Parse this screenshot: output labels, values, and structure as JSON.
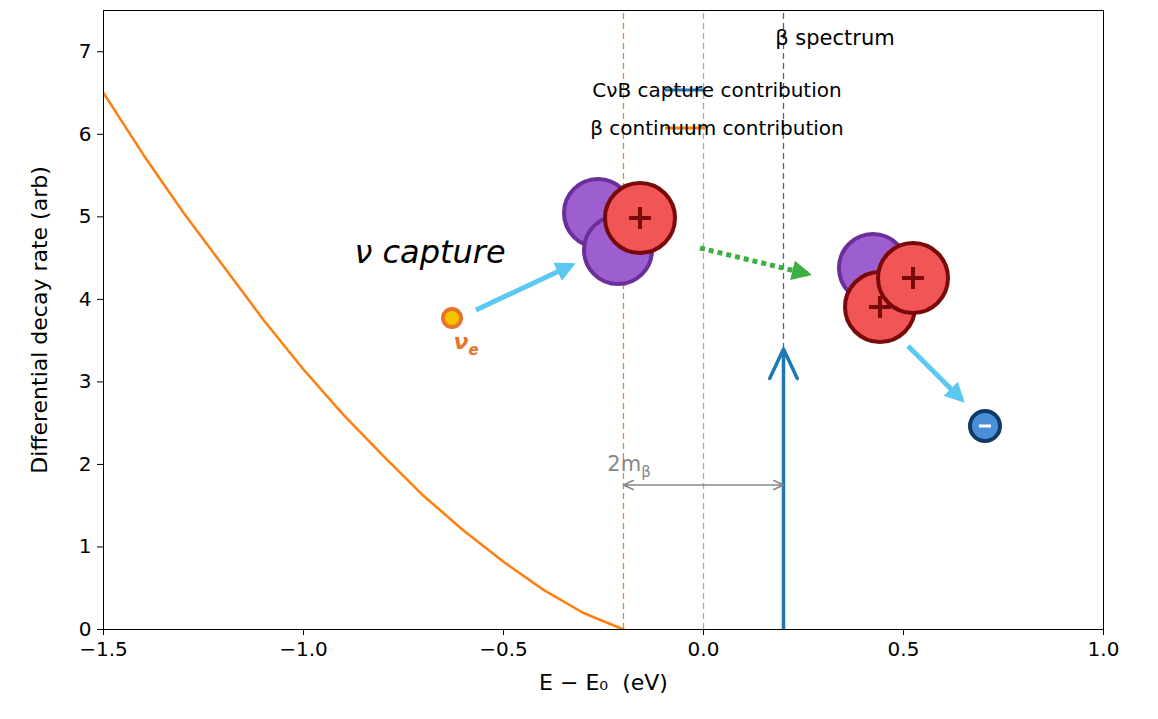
{
  "chart_data": {
    "type": "line",
    "xlabel": "E − E₀  (eV)",
    "ylabel": "Differential decay rate (arb)",
    "xlim": [
      -1.5,
      1.0
    ],
    "xticks": [
      {
        "value": -1.5,
        "label": "−1.5"
      },
      {
        "value": -1.0,
        "label": "−1.0"
      },
      {
        "value": -0.5,
        "label": "−0.5"
      },
      {
        "value": 0.0,
        "label": "0.0"
      },
      {
        "value": 0.5,
        "label": "0.5"
      },
      {
        "value": 1.0,
        "label": "1.0"
      }
    ],
    "ylim": [
      0,
      7.5
    ],
    "yticks": [
      0,
      1,
      2,
      3,
      4,
      5,
      6,
      7
    ],
    "legend": "upper right",
    "legend_title": "β spectrum",
    "series": [
      {
        "name": "CνB capture contribution",
        "color": "#1f77b4",
        "type": "arrow",
        "x": [
          0.2
        ],
        "values": [
          3.4
        ]
      },
      {
        "name": "β continuum contribution",
        "color": "#ff7f0e",
        "type": "line",
        "x": [
          -1.5,
          -1.4,
          -1.3,
          -1.2,
          -1.1,
          -1.0,
          -0.9,
          -0.8,
          -0.7,
          -0.6,
          -0.5,
          -0.4,
          -0.3,
          -0.2
        ],
        "values": [
          6.5,
          5.75,
          5.05,
          4.4,
          3.75,
          3.15,
          2.6,
          2.1,
          1.62,
          1.2,
          0.82,
          0.48,
          0.2,
          0
        ]
      }
    ],
    "reference_lines": [
      {
        "x": -0.2,
        "color": "#ff7f0e",
        "line_style": "dashed"
      },
      {
        "x": 0.0,
        "color": "#aaaaaa",
        "line_style": "dashed"
      },
      {
        "x": 0.2,
        "color": "#1f77b4",
        "line_style": "dashed"
      }
    ],
    "annotations": {
      "mass_gap": {
        "text": "2m",
        "subscript": "β",
        "x_from": -0.2,
        "x_to": 0.2,
        "y": 1.75,
        "color": "#888888"
      },
      "capture": {
        "text": "ν capture"
      },
      "neutrino": {
        "text": "ν",
        "subscript": "e",
        "color": "#e8742a"
      }
    }
  }
}
